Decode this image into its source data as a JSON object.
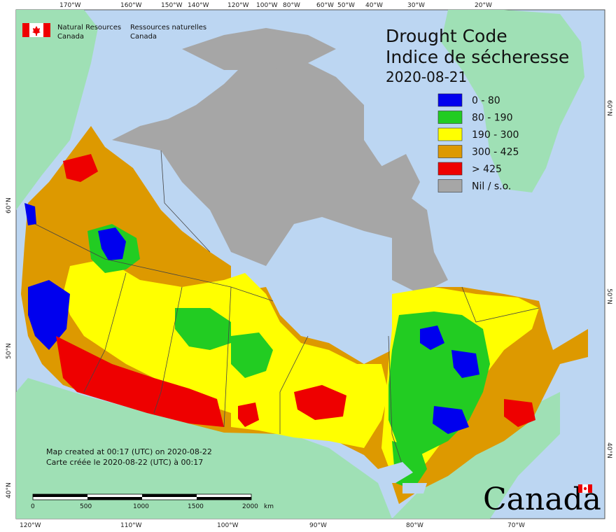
{
  "header": {
    "org_en_line1": "Natural Resources",
    "org_en_line2": "Canada",
    "org_fr_line1": "Ressources naturelles",
    "org_fr_line2": "Canada"
  },
  "title": {
    "line1": "Drought Code",
    "line2": "Indice de sécheresse",
    "date": "2020-08-21"
  },
  "legend": {
    "items": [
      {
        "label": "0 - 80",
        "color": "#0000ee"
      },
      {
        "label": "80 - 190",
        "color": "#22cc22"
      },
      {
        "label": "190 - 300",
        "color": "#ffff00"
      },
      {
        "label": "300 - 425",
        "color": "#dd9900"
      },
      {
        "label": "> 425",
        "color": "#ee0000"
      },
      {
        "label": "Nil / s.o.",
        "color": "#a6a6a6"
      }
    ]
  },
  "notes": {
    "created_en": "Map created at 00:17 (UTC) on 2020-08-22",
    "created_fr": "Carte créée le 2020-08-22 (UTC) à 00:17"
  },
  "scale_bar": {
    "ticks": [
      "0",
      "500",
      "1000",
      "1500",
      "2000"
    ],
    "unit": "km"
  },
  "graticule": {
    "top": [
      "170°W",
      "160°W",
      "150°W",
      "140°W",
      "120°W",
      "100°W",
      "80°W",
      "60°W",
      "50°W",
      "40°W",
      "30°W",
      "20°W"
    ],
    "bottom": [
      "120°W",
      "110°W",
      "100°W",
      "90°W",
      "80°W",
      "70°W"
    ],
    "left": [
      "60°N",
      "50°N",
      "40°N"
    ],
    "right": [
      "60°N",
      "50°N",
      "40°N"
    ]
  },
  "wordmark": "Canada",
  "colors": {
    "ocean": "#bcd6f2",
    "land_other": "#9fe0b5",
    "nil_grey": "#a6a6a6"
  }
}
